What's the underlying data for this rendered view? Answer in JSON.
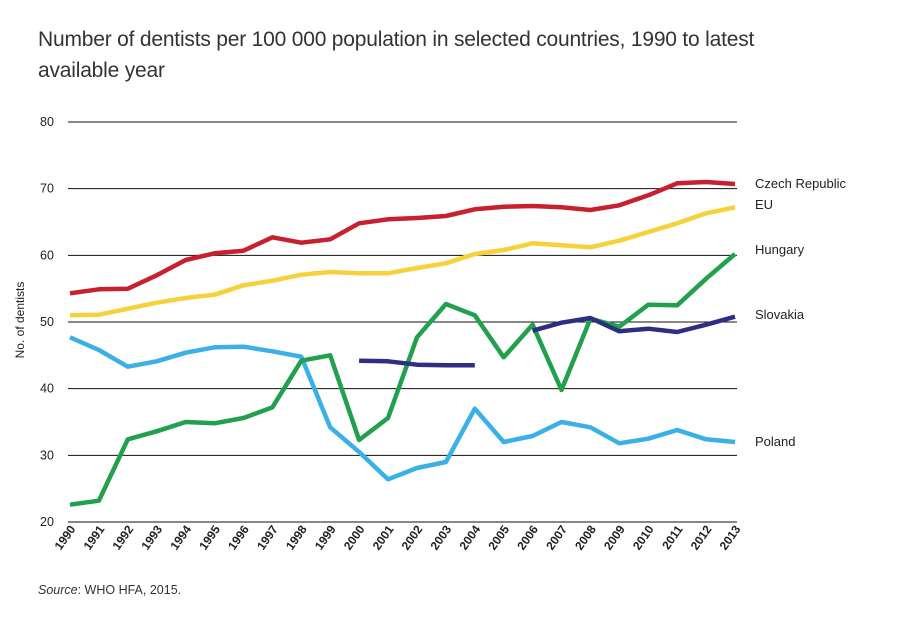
{
  "chart_data": {
    "type": "line",
    "title": "Number of dentists per 100 000 population in selected countries, 1990 to latest available year",
    "xlabel": "",
    "ylabel": "No. of dentists",
    "ylim": [
      20,
      80
    ],
    "yticks": [
      "20",
      "30",
      "40",
      "50",
      "60",
      "70",
      "80"
    ],
    "categories": [
      "1990",
      "1991",
      "1992",
      "1993",
      "1994",
      "1995",
      "1996",
      "1997",
      "1998",
      "1999",
      "2000",
      "2001",
      "2002",
      "2003",
      "2004",
      "2005",
      "2006",
      "2007",
      "2008",
      "2009",
      "2010",
      "2011",
      "2012",
      "2013"
    ],
    "series": [
      {
        "name": "Czech Republic",
        "color": "#c8202f",
        "values": [
          54.3,
          54.9,
          55.0,
          57.0,
          59.3,
          60.3,
          60.7,
          62.7,
          61.9,
          62.4,
          64.8,
          65.4,
          65.6,
          65.9,
          66.9,
          67.3,
          67.4,
          67.2,
          66.8,
          67.5,
          69.0,
          70.8,
          71.0,
          70.7
        ]
      },
      {
        "name": "EU",
        "color": "#f5d13a",
        "values": [
          51.0,
          51.1,
          52.0,
          52.9,
          53.6,
          54.1,
          55.5,
          56.2,
          57.1,
          57.5,
          57.3,
          57.3,
          58.1,
          58.8,
          60.2,
          60.8,
          61.8,
          61.5,
          61.2,
          62.2,
          63.5,
          64.8,
          66.3,
          67.2
        ]
      },
      {
        "name": "Hungary",
        "color": "#21a04d",
        "values": [
          22.6,
          23.2,
          32.4,
          33.6,
          35.0,
          34.8,
          35.6,
          37.2,
          44.2,
          45.0,
          32.3,
          35.6,
          47.7,
          52.7,
          51.0,
          44.7,
          49.6,
          39.8,
          50.5,
          49.3,
          52.6,
          52.5,
          56.5,
          60.2
        ]
      },
      {
        "name": "Slovakia",
        "color": "#2e2f83",
        "values": [
          null,
          null,
          null,
          null,
          null,
          null,
          null,
          null,
          null,
          null,
          44.2,
          44.1,
          43.6,
          43.5,
          43.5,
          null,
          48.7,
          49.9,
          50.6,
          48.6,
          49.0,
          48.5,
          49.6,
          50.8
        ]
      },
      {
        "name": "Poland",
        "color": "#3bb0e6",
        "values": [
          47.7,
          45.8,
          43.3,
          44.1,
          45.4,
          46.2,
          46.3,
          45.6,
          44.8,
          34.2,
          30.5,
          26.4,
          28.1,
          29.0,
          37.0,
          32.0,
          32.9,
          35.0,
          34.2,
          31.8,
          32.5,
          33.8,
          32.4,
          32.0
        ]
      }
    ],
    "legend": [
      "Czech Republic",
      "EU",
      "Hungary",
      "Slovakia",
      "Poland"
    ],
    "legend_placement": "right (end of lines)",
    "grid": true
  },
  "source": {
    "label": "Source",
    "text": ": WHO HFA, 2015."
  }
}
